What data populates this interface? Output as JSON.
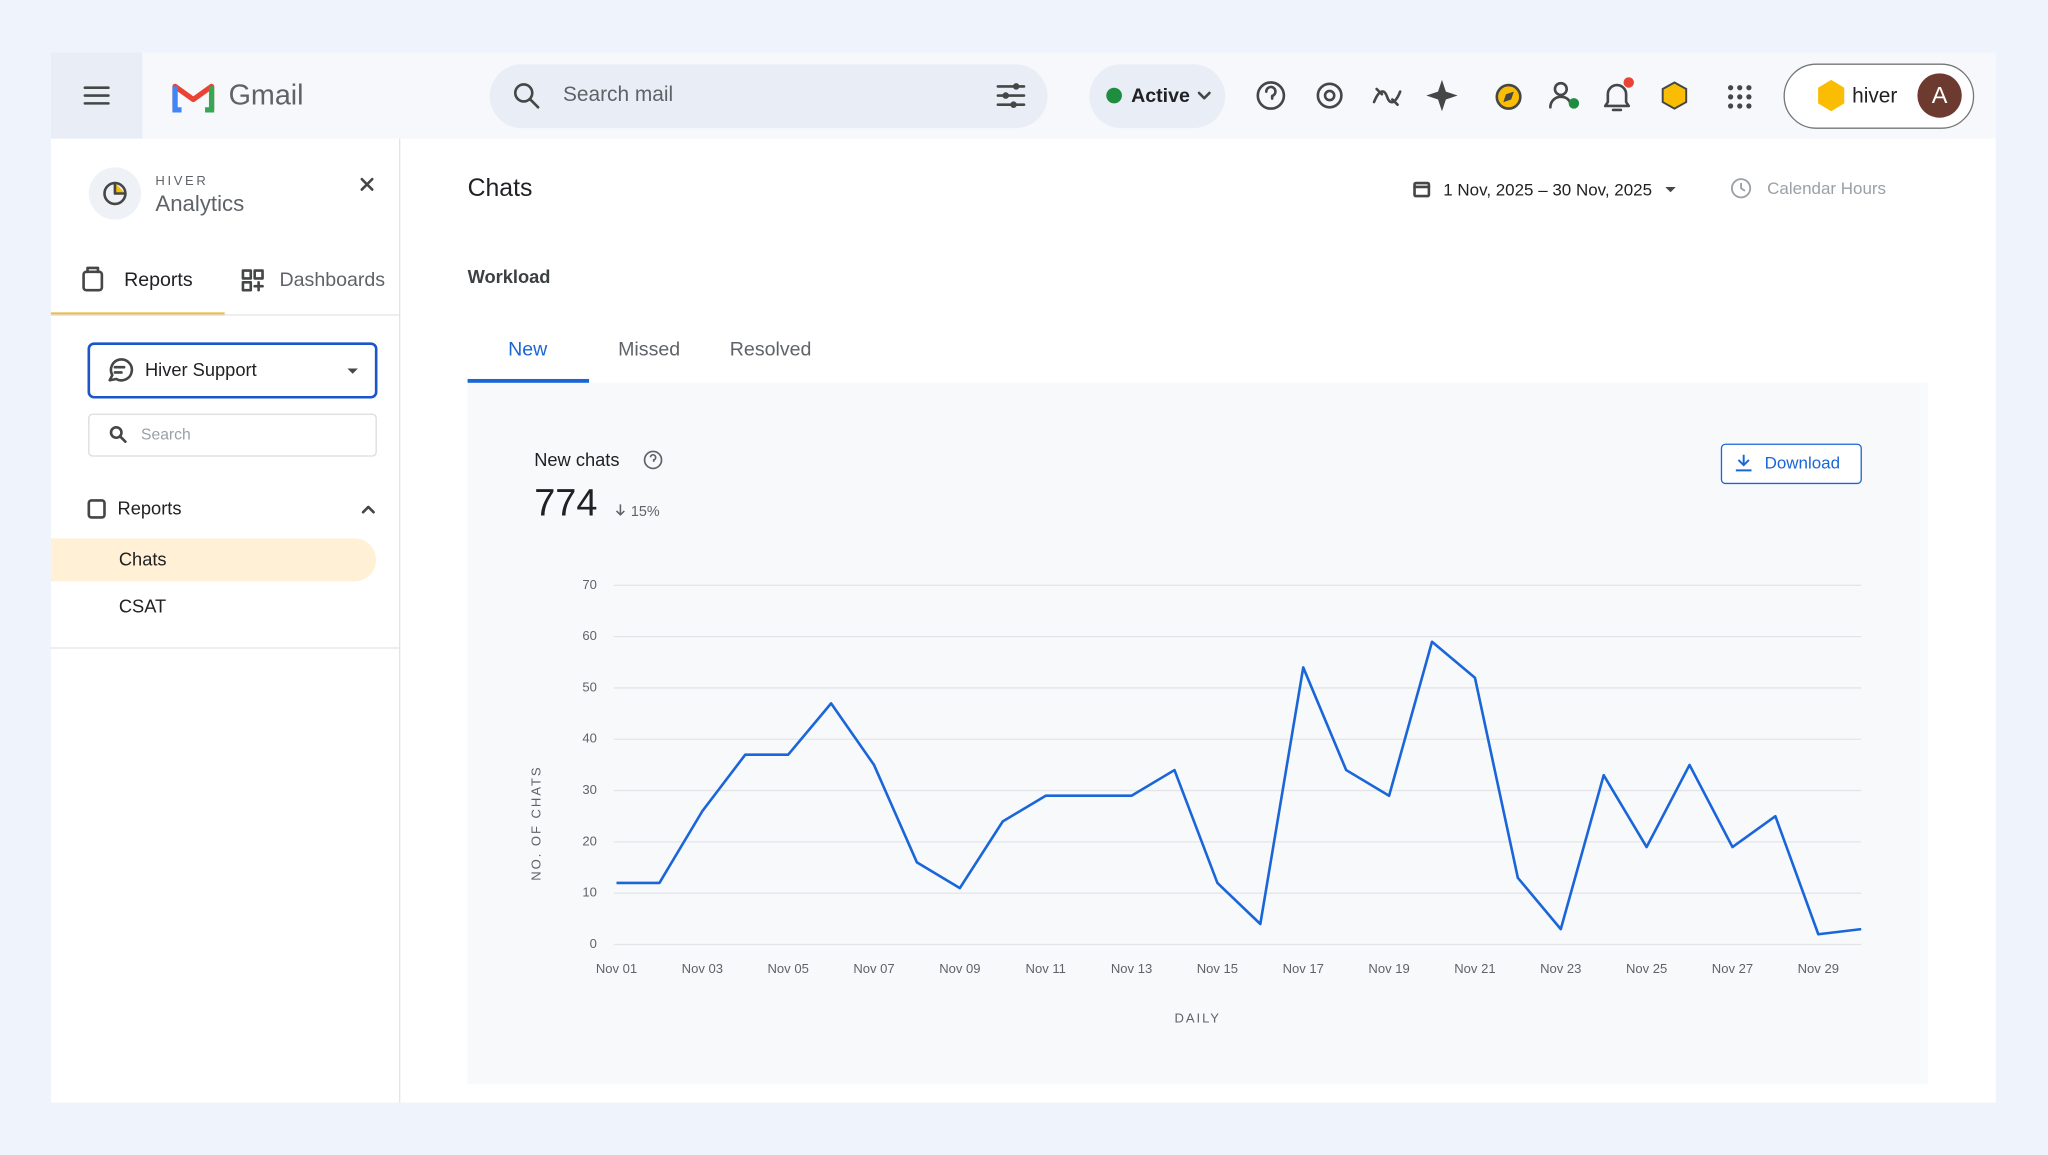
{
  "gmail": {
    "brand": "Gmail",
    "search_placeholder": "Search mail",
    "status": "Active",
    "account_brand": "hiver",
    "avatar": "A"
  },
  "sidebar": {
    "brand": "HIVER",
    "product": "Analytics",
    "tabs": [
      "Reports",
      "Dashboards"
    ],
    "inbox": "Hiver Support",
    "search_placeholder": "Search",
    "section": "Reports",
    "items": [
      "Chats",
      "CSAT"
    ]
  },
  "header": {
    "title": "Chats",
    "date_range": "1 Nov, 2025 – 30 Nov, 2025",
    "hours": "Calendar Hours",
    "section": "Workload",
    "tabs": [
      "New",
      "Missed",
      "Resolved"
    ]
  },
  "card": {
    "title": "New chats",
    "total": 774,
    "change": "15%",
    "download": "Download"
  },
  "chart_data": {
    "type": "line",
    "y_label": "NO. OF CHATS",
    "x_label": "DAILY",
    "categories": [
      "Nov 01",
      null,
      "Nov 03",
      null,
      "Nov 05",
      null,
      "Nov 07",
      null,
      "Nov 09",
      null,
      "Nov 11",
      null,
      "Nov 13",
      null,
      "Nov 15",
      null,
      "Nov 17",
      null,
      "Nov 19",
      null,
      "Nov 21",
      null,
      "Nov 23",
      null,
      "Nov 25",
      null,
      "Nov 27",
      null,
      "Nov 29",
      null
    ],
    "values": [
      12,
      12,
      26,
      37,
      37,
      47,
      35,
      16,
      11,
      24,
      29,
      29,
      29,
      34,
      12,
      4,
      54,
      34,
      29,
      59,
      52,
      13,
      3,
      33,
      19,
      35,
      19,
      25,
      2,
      3
    ],
    "color": "#1a66d9",
    "ylim": [
      0,
      70
    ],
    "yticks": [
      0,
      10,
      20,
      30,
      40,
      50,
      60,
      70
    ],
    "grid": true
  }
}
